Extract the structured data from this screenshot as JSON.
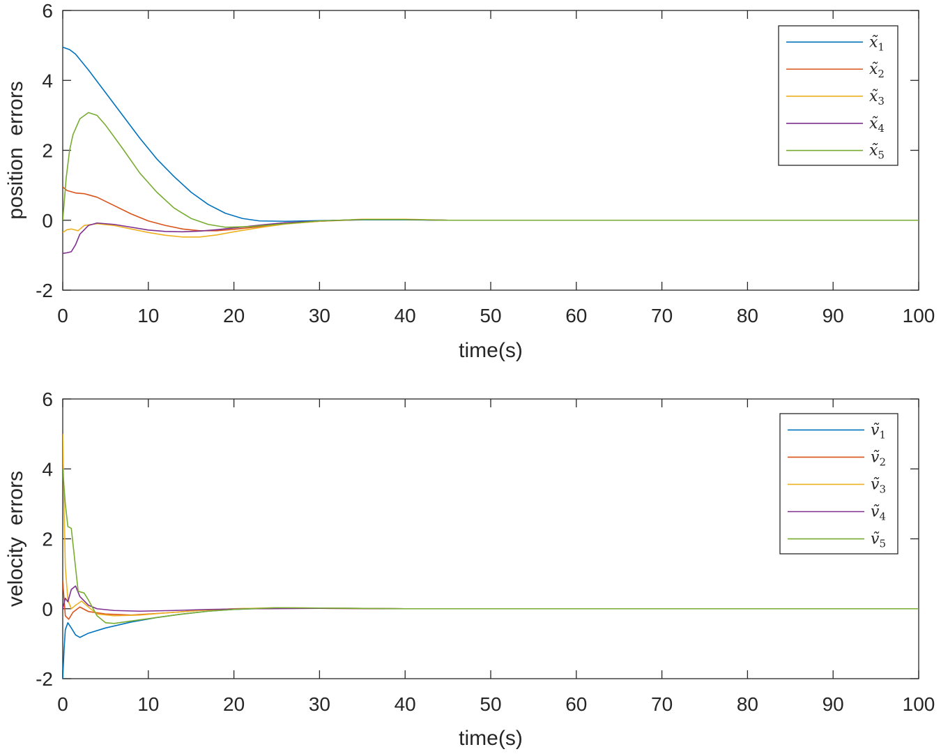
{
  "chart_data": [
    {
      "type": "line",
      "xlabel": "time(s)",
      "ylabel": "position  errors",
      "xlim": [
        0,
        100
      ],
      "ylim": [
        -2,
        6
      ],
      "xticks": [
        0,
        10,
        20,
        30,
        40,
        50,
        60,
        70,
        80,
        90,
        100
      ],
      "yticks": [
        -2,
        0,
        2,
        4,
        6
      ],
      "grid": false,
      "legend_position": "top-right",
      "series": [
        {
          "name": "x̃",
          "sub": "1",
          "color": "#0072BD",
          "points": [
            [
              0,
              4.95
            ],
            [
              0.8,
              4.88
            ],
            [
              1.5,
              4.75
            ],
            [
              3,
              4.3
            ],
            [
              5,
              3.65
            ],
            [
              7,
              3.0
            ],
            [
              9,
              2.35
            ],
            [
              11,
              1.75
            ],
            [
              13,
              1.25
            ],
            [
              15,
              0.8
            ],
            [
              17,
              0.45
            ],
            [
              19,
              0.2
            ],
            [
              21,
              0.05
            ],
            [
              23,
              -0.02
            ],
            [
              26,
              -0.03
            ],
            [
              30,
              -0.01
            ],
            [
              35,
              0.01
            ],
            [
              40,
              0.01
            ],
            [
              45,
              0.0
            ],
            [
              100,
              0.0
            ]
          ]
        },
        {
          "name": "x̃",
          "sub": "2",
          "color": "#D95319",
          "points": [
            [
              0,
              0.95
            ],
            [
              0.5,
              0.85
            ],
            [
              1.5,
              0.78
            ],
            [
              2.5,
              0.76
            ],
            [
              4,
              0.66
            ],
            [
              6,
              0.42
            ],
            [
              8,
              0.18
            ],
            [
              10,
              -0.02
            ],
            [
              12,
              -0.15
            ],
            [
              14,
              -0.25
            ],
            [
              16,
              -0.3
            ],
            [
              18,
              -0.3
            ],
            [
              20,
              -0.26
            ],
            [
              23,
              -0.18
            ],
            [
              26,
              -0.1
            ],
            [
              30,
              -0.03
            ],
            [
              35,
              0.02
            ],
            [
              40,
              0.02
            ],
            [
              45,
              0.0
            ],
            [
              100,
              0.0
            ]
          ]
        },
        {
          "name": "x̃",
          "sub": "3",
          "color": "#EDB120",
          "points": [
            [
              0,
              -0.35
            ],
            [
              0.5,
              -0.27
            ],
            [
              1,
              -0.25
            ],
            [
              1.8,
              -0.3
            ],
            [
              2.5,
              -0.15
            ],
            [
              4,
              -0.1
            ],
            [
              6,
              -0.15
            ],
            [
              8,
              -0.25
            ],
            [
              10,
              -0.35
            ],
            [
              12,
              -0.43
            ],
            [
              14,
              -0.48
            ],
            [
              16,
              -0.48
            ],
            [
              18,
              -0.42
            ],
            [
              20,
              -0.33
            ],
            [
              23,
              -0.21
            ],
            [
              26,
              -0.11
            ],
            [
              30,
              -0.03
            ],
            [
              35,
              0.03
            ],
            [
              40,
              0.03
            ],
            [
              45,
              0.0
            ],
            [
              100,
              0.0
            ]
          ]
        },
        {
          "name": "x̃",
          "sub": "4",
          "color": "#7E2F8E",
          "points": [
            [
              0,
              -0.95
            ],
            [
              0.5,
              -0.93
            ],
            [
              1,
              -0.9
            ],
            [
              1.5,
              -0.7
            ],
            [
              2,
              -0.4
            ],
            [
              3,
              -0.15
            ],
            [
              4,
              -0.08
            ],
            [
              6,
              -0.12
            ],
            [
              8,
              -0.2
            ],
            [
              10,
              -0.28
            ],
            [
              12,
              -0.32
            ],
            [
              14,
              -0.33
            ],
            [
              16,
              -0.31
            ],
            [
              18,
              -0.27
            ],
            [
              20,
              -0.22
            ],
            [
              23,
              -0.14
            ],
            [
              26,
              -0.07
            ],
            [
              30,
              -0.02
            ],
            [
              35,
              0.02
            ],
            [
              40,
              0.02
            ],
            [
              45,
              0.0
            ],
            [
              100,
              0.0
            ]
          ]
        },
        {
          "name": "x̃",
          "sub": "5",
          "color": "#77AC30",
          "points": [
            [
              0,
              0.0
            ],
            [
              0.4,
              1.2
            ],
            [
              0.8,
              2.0
            ],
            [
              1.2,
              2.45
            ],
            [
              2,
              2.9
            ],
            [
              3,
              3.08
            ],
            [
              4,
              3.0
            ],
            [
              5,
              2.72
            ],
            [
              7,
              2.05
            ],
            [
              9,
              1.35
            ],
            [
              11,
              0.8
            ],
            [
              13,
              0.35
            ],
            [
              15,
              0.05
            ],
            [
              17,
              -0.12
            ],
            [
              19,
              -0.2
            ],
            [
              22,
              -0.18
            ],
            [
              26,
              -0.1
            ],
            [
              30,
              -0.02
            ],
            [
              35,
              0.02
            ],
            [
              40,
              0.02
            ],
            [
              45,
              0.0
            ],
            [
              100,
              0.0
            ]
          ]
        }
      ]
    },
    {
      "type": "line",
      "xlabel": "time(s)",
      "ylabel": "velocity  errors",
      "xlim": [
        0,
        100
      ],
      "ylim": [
        -2,
        6
      ],
      "xticks": [
        0,
        10,
        20,
        30,
        40,
        50,
        60,
        70,
        80,
        90,
        100
      ],
      "yticks": [
        -2,
        0,
        2,
        4,
        6
      ],
      "grid": false,
      "legend_position": "top-right",
      "series": [
        {
          "name": "ṽ",
          "sub": "1",
          "color": "#0072BD",
          "points": [
            [
              0,
              -2.0
            ],
            [
              0.15,
              -1.2
            ],
            [
              0.3,
              -0.6
            ],
            [
              0.6,
              -0.4
            ],
            [
              1,
              -0.55
            ],
            [
              1.5,
              -0.75
            ],
            [
              2,
              -0.82
            ],
            [
              3,
              -0.7
            ],
            [
              5,
              -0.55
            ],
            [
              8,
              -0.38
            ],
            [
              11,
              -0.25
            ],
            [
              14,
              -0.15
            ],
            [
              17,
              -0.07
            ],
            [
              20,
              -0.02
            ],
            [
              25,
              0.02
            ],
            [
              30,
              0.02
            ],
            [
              35,
              0.01
            ],
            [
              40,
              0.0
            ],
            [
              100,
              0.0
            ]
          ]
        },
        {
          "name": "ṽ",
          "sub": "2",
          "color": "#D95319",
          "points": [
            [
              0,
              0.8
            ],
            [
              0.3,
              -0.2
            ],
            [
              0.7,
              -0.3
            ],
            [
              1.2,
              -0.1
            ],
            [
              2,
              0.05
            ],
            [
              3,
              -0.08
            ],
            [
              5,
              -0.15
            ],
            [
              8,
              -0.18
            ],
            [
              12,
              -0.12
            ],
            [
              16,
              -0.05
            ],
            [
              20,
              0.0
            ],
            [
              25,
              0.02
            ],
            [
              30,
              0.01
            ],
            [
              40,
              0.0
            ],
            [
              100,
              0.0
            ]
          ]
        },
        {
          "name": "ṽ",
          "sub": "3",
          "color": "#EDB120",
          "points": [
            [
              0,
              5.0
            ],
            [
              0.15,
              3.0
            ],
            [
              0.3,
              1.2
            ],
            [
              0.6,
              0.25
            ],
            [
              1,
              0.0
            ],
            [
              1.5,
              0.1
            ],
            [
              2.2,
              0.22
            ],
            [
              3,
              0.05
            ],
            [
              4,
              -0.15
            ],
            [
              6,
              -0.2
            ],
            [
              9,
              -0.18
            ],
            [
              12,
              -0.12
            ],
            [
              16,
              -0.05
            ],
            [
              20,
              0.0
            ],
            [
              25,
              0.03
            ],
            [
              30,
              0.02
            ],
            [
              40,
              0.0
            ],
            [
              100,
              0.0
            ]
          ]
        },
        {
          "name": "ṽ",
          "sub": "4",
          "color": "#7E2F8E",
          "points": [
            [
              0,
              0.0
            ],
            [
              0.3,
              0.3
            ],
            [
              0.6,
              0.2
            ],
            [
              1,
              0.55
            ],
            [
              1.5,
              0.65
            ],
            [
              2,
              0.35
            ],
            [
              3,
              0.1
            ],
            [
              4,
              0.0
            ],
            [
              6,
              -0.05
            ],
            [
              9,
              -0.07
            ],
            [
              13,
              -0.05
            ],
            [
              17,
              -0.02
            ],
            [
              22,
              0.0
            ],
            [
              30,
              0.01
            ],
            [
              40,
              0.0
            ],
            [
              100,
              0.0
            ]
          ]
        },
        {
          "name": "ṽ",
          "sub": "5",
          "color": "#77AC30",
          "points": [
            [
              0,
              4.0
            ],
            [
              0.3,
              3.0
            ],
            [
              0.6,
              2.35
            ],
            [
              1,
              2.3
            ],
            [
              1.4,
              1.4
            ],
            [
              1.8,
              0.5
            ],
            [
              2.5,
              0.45
            ],
            [
              3,
              0.25
            ],
            [
              4,
              -0.2
            ],
            [
              5,
              -0.4
            ],
            [
              6,
              -0.42
            ],
            [
              8,
              -0.35
            ],
            [
              11,
              -0.25
            ],
            [
              14,
              -0.15
            ],
            [
              17,
              -0.07
            ],
            [
              20,
              -0.02
            ],
            [
              25,
              0.03
            ],
            [
              30,
              0.02
            ],
            [
              40,
              0.0
            ],
            [
              100,
              0.0
            ]
          ]
        }
      ]
    }
  ]
}
